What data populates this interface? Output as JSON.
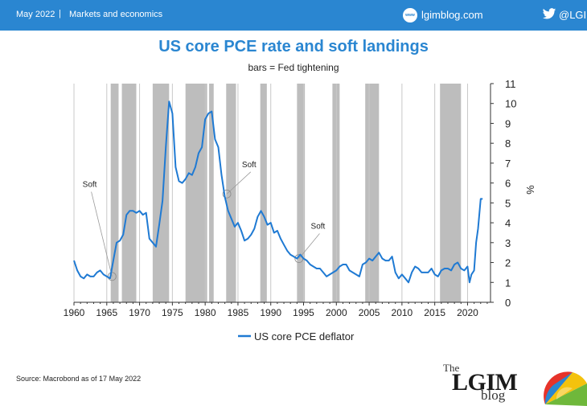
{
  "header": {
    "date": "May 2022",
    "separator": "|",
    "section": "Markets and economics",
    "blog_icon": "www-icon",
    "blog": "lgimblog.com",
    "twitter_icon": "twitter-bird-icon",
    "twitter": "@LGIM",
    "bar_color": "#2a86d1"
  },
  "footer": {
    "source": "Source: Macrobond as of 17 May 2022",
    "logo_the": "The",
    "logo_lgim": "LGIM",
    "logo_blog": "blog"
  },
  "chart_data": {
    "type": "line",
    "title": "US core PCE rate and soft landings",
    "subtitle": "bars = Fed tightening",
    "ylabel": "%",
    "xlabel": "",
    "xlim": [
      1960,
      2023.5
    ],
    "ylim": [
      0,
      11
    ],
    "x_ticks": [
      1960,
      1965,
      1970,
      1975,
      1980,
      1985,
      1990,
      1995,
      2000,
      2005,
      2010,
      2015,
      2020
    ],
    "y_ticks": [
      0,
      1,
      2,
      3,
      4,
      5,
      6,
      7,
      8,
      9,
      10,
      11
    ],
    "grid": "vertical",
    "legend_position": "bottom",
    "line_color": "#1f7ad3",
    "bar_color": "#bdbdbd",
    "tightening_periods": [
      [
        1965.6,
        1966.8
      ],
      [
        1967.3,
        1969.5
      ],
      [
        1972.0,
        1974.5
      ],
      [
        1977.0,
        1980.3
      ],
      [
        1980.6,
        1981.3
      ],
      [
        1983.2,
        1984.7
      ],
      [
        1988.4,
        1989.4
      ],
      [
        1994.0,
        1995.2
      ],
      [
        1999.4,
        2000.5
      ],
      [
        2004.4,
        2006.5
      ],
      [
        2015.8,
        2019.0
      ]
    ],
    "annotations": [
      {
        "text": "Soft",
        "x": 1965.8,
        "y": 1.3,
        "label_x": 1962.4,
        "label_y": 5.8
      },
      {
        "text": "Soft",
        "x": 1983.3,
        "y": 5.45,
        "label_x": 1986.7,
        "label_y": 6.8
      },
      {
        "text": "Soft",
        "x": 1994.3,
        "y": 2.2,
        "label_x": 1997.2,
        "label_y": 3.7
      }
    ],
    "series": [
      {
        "name": "US core PCE deflator",
        "x": [
          1960.0,
          1960.5,
          1961.0,
          1961.5,
          1962.0,
          1962.5,
          1963.0,
          1963.5,
          1964.0,
          1964.5,
          1965.0,
          1965.5,
          1966.0,
          1966.5,
          1967.0,
          1967.5,
          1968.0,
          1968.5,
          1969.0,
          1969.5,
          1970.0,
          1970.5,
          1971.0,
          1971.5,
          1972.0,
          1972.5,
          1973.0,
          1973.5,
          1974.0,
          1974.5,
          1975.0,
          1975.5,
          1976.0,
          1976.5,
          1977.0,
          1977.5,
          1978.0,
          1978.5,
          1979.0,
          1979.5,
          1980.0,
          1980.5,
          1981.0,
          1981.5,
          1982.0,
          1982.5,
          1983.0,
          1983.5,
          1984.0,
          1984.5,
          1985.0,
          1985.5,
          1986.0,
          1986.5,
          1987.0,
          1987.5,
          1988.0,
          1988.5,
          1989.0,
          1989.5,
          1990.0,
          1990.5,
          1991.0,
          1991.5,
          1992.0,
          1992.5,
          1993.0,
          1993.5,
          1994.0,
          1994.5,
          1995.0,
          1995.5,
          1996.0,
          1996.5,
          1997.0,
          1997.5,
          1998.0,
          1998.5,
          1999.0,
          1999.5,
          2000.0,
          2000.5,
          2001.0,
          2001.5,
          2002.0,
          2002.5,
          2003.0,
          2003.5,
          2004.0,
          2004.5,
          2005.0,
          2005.5,
          2006.0,
          2006.5,
          2007.0,
          2007.5,
          2008.0,
          2008.5,
          2009.0,
          2009.5,
          2010.0,
          2010.5,
          2011.0,
          2011.5,
          2012.0,
          2012.5,
          2013.0,
          2013.5,
          2014.0,
          2014.5,
          2015.0,
          2015.5,
          2016.0,
          2016.5,
          2017.0,
          2017.5,
          2018.0,
          2018.5,
          2019.0,
          2019.5,
          2020.0,
          2020.3,
          2020.6,
          2021.0,
          2021.3,
          2021.6,
          2022.0,
          2022.3
        ],
        "y": [
          2.1,
          1.6,
          1.3,
          1.2,
          1.4,
          1.3,
          1.3,
          1.5,
          1.6,
          1.4,
          1.3,
          1.2,
          2.1,
          3.0,
          3.1,
          3.4,
          4.4,
          4.6,
          4.6,
          4.5,
          4.6,
          4.4,
          4.5,
          3.2,
          3.0,
          2.8,
          3.9,
          5.1,
          7.8,
          10.1,
          9.5,
          6.8,
          6.1,
          6.0,
          6.2,
          6.5,
          6.4,
          6.8,
          7.5,
          7.8,
          9.2,
          9.5,
          9.6,
          8.2,
          7.8,
          6.4,
          5.3,
          4.6,
          4.2,
          3.8,
          4.0,
          3.6,
          3.1,
          3.2,
          3.4,
          3.7,
          4.3,
          4.6,
          4.3,
          3.9,
          4.0,
          3.5,
          3.6,
          3.2,
          2.9,
          2.6,
          2.4,
          2.3,
          2.2,
          2.4,
          2.2,
          2.1,
          1.9,
          1.8,
          1.7,
          1.7,
          1.5,
          1.3,
          1.4,
          1.5,
          1.6,
          1.8,
          1.9,
          1.9,
          1.6,
          1.5,
          1.4,
          1.3,
          1.9,
          2.0,
          2.2,
          2.1,
          2.3,
          2.5,
          2.2,
          2.1,
          2.1,
          2.3,
          1.5,
          1.2,
          1.4,
          1.2,
          1.0,
          1.5,
          1.8,
          1.7,
          1.5,
          1.5,
          1.5,
          1.7,
          1.4,
          1.3,
          1.6,
          1.7,
          1.7,
          1.6,
          1.9,
          2.0,
          1.7,
          1.6,
          1.8,
          1.0,
          1.4,
          1.6,
          3.0,
          3.7,
          5.2,
          5.2
        ]
      }
    ]
  }
}
